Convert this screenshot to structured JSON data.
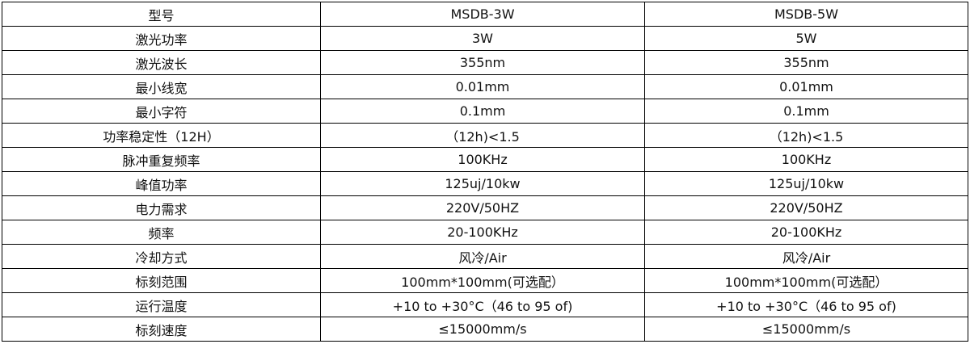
{
  "table": {
    "rows": [
      [
        "型号",
        "MSDB-3W",
        "MSDB-5W"
      ],
      [
        "激光功率",
        "3W",
        "5W"
      ],
      [
        "激光波长",
        "355nm",
        "355nm"
      ],
      [
        "最小线宽",
        "0.01mm",
        "0.01mm"
      ],
      [
        "最小字符",
        "0.1mm",
        "0.1mm"
      ],
      [
        "功率稳定性（12H）",
        "（12h)<1.5",
        "（12h)<1.5"
      ],
      [
        "脉冲重复频率",
        "100KHz",
        "100KHz"
      ],
      [
        "峰值功率",
        "125uj/10kw",
        "125uj/10kw"
      ],
      [
        "电力需求",
        "220V/50HZ",
        "220V/50HZ"
      ],
      [
        "频率",
        "20-100KHz",
        "20-100KHz"
      ],
      [
        "冷却方式",
        "风冷/Air",
        "风冷/Air"
      ],
      [
        "标刻范围",
        "100mm*100mm(可选配）",
        "100mm*100mm(可选配）"
      ],
      [
        "运行温度",
        "+10 to +30°C（46 to 95 of)",
        "+10 to +30°C（46 to 95 of)"
      ],
      [
        "标刻速度",
        "≤15000mm/s",
        "≤15000mm/s"
      ]
    ]
  }
}
